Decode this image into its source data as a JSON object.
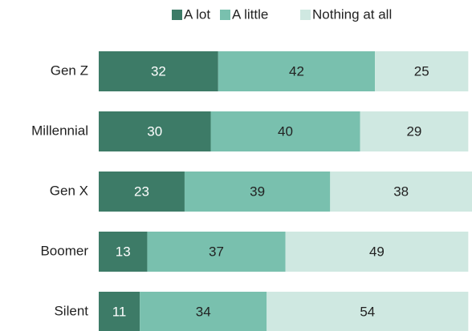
{
  "chart_data": {
    "type": "stacked-bar-horizontal",
    "categories": [
      "Gen Z",
      "Millennial",
      "Gen X",
      "Boomer",
      "Silent"
    ],
    "series": [
      {
        "name": "A lot",
        "color": "#3d7b67",
        "values": [
          32,
          30,
          23,
          13,
          11
        ]
      },
      {
        "name": "A little",
        "color": "#79c0ae",
        "values": [
          42,
          40,
          39,
          37,
          34
        ]
      },
      {
        "name": "Nothing at all",
        "color": "#cfe8e1",
        "values": [
          25,
          29,
          38,
          49,
          54
        ]
      }
    ],
    "xlim": [
      0,
      100
    ]
  }
}
